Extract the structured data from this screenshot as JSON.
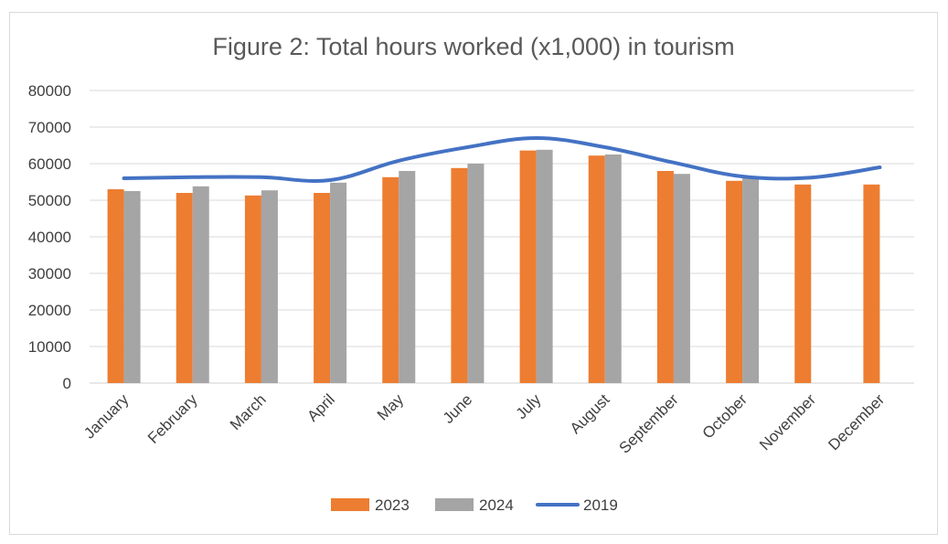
{
  "chart_data": {
    "type": "bar",
    "title": "Figure 2: Total hours worked (x1,000) in tourism",
    "xlabel": "",
    "ylabel": "",
    "categories": [
      "January",
      "February",
      "March",
      "April",
      "May",
      "June",
      "July",
      "August",
      "September",
      "October",
      "November",
      "December"
    ],
    "ylim": [
      0,
      80000
    ],
    "yticks": [
      0,
      10000,
      20000,
      30000,
      40000,
      50000,
      60000,
      70000,
      80000
    ],
    "ytick_labels": [
      "0",
      "10000",
      "20000",
      "30000",
      "40000",
      "50000",
      "60000",
      "70000",
      "80000"
    ],
    "grid": true,
    "legend_position": "bottom",
    "series": [
      {
        "name": "2023",
        "kind": "bar",
        "color": "#ed7d31",
        "values": [
          53000,
          52000,
          51300,
          52000,
          56300,
          58800,
          63600,
          62200,
          58000,
          55300,
          54300,
          54300
        ]
      },
      {
        "name": "2024",
        "kind": "bar",
        "color": "#a5a5a5",
        "values": [
          52500,
          53800,
          52700,
          54800,
          58000,
          60000,
          63800,
          62500,
          57200,
          56300,
          null,
          null
        ]
      },
      {
        "name": "2019",
        "kind": "line",
        "color": "#4472c4",
        "values": [
          56000,
          56300,
          56300,
          55500,
          60800,
          64500,
          67000,
          64500,
          60300,
          56500,
          56200,
          59000
        ]
      }
    ]
  }
}
